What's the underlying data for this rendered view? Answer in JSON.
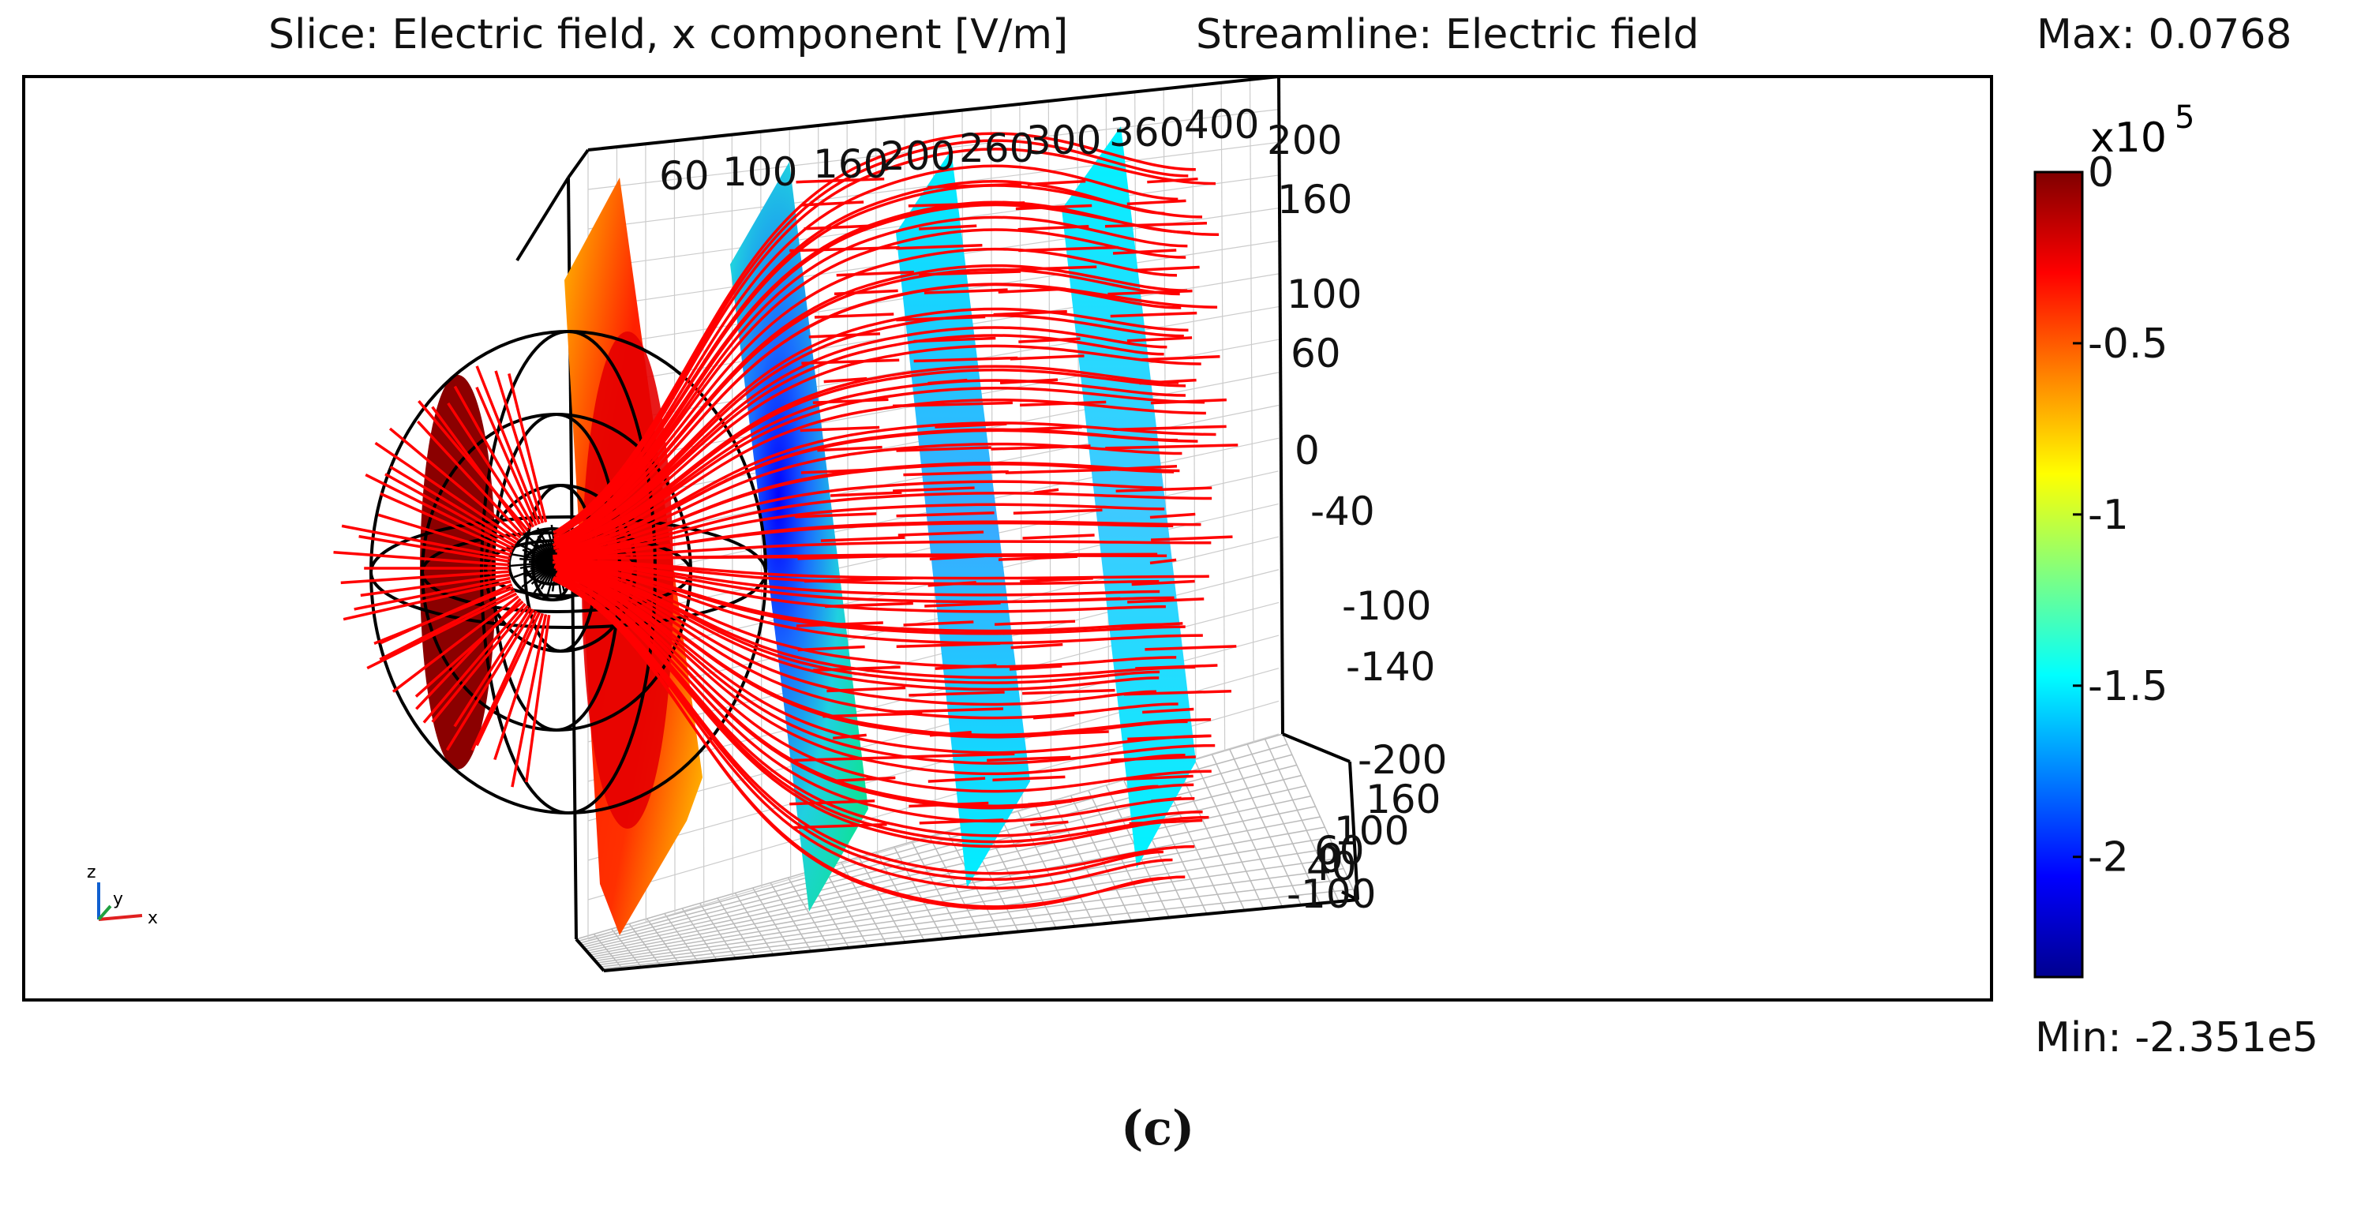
{
  "header": {
    "slice_title": "Slice: Electric field, x component [V/m]",
    "streamline_title": "Streamline: Electric field"
  },
  "colorbar": {
    "max_text": "Max: 0.0768",
    "min_text": "Min: -2.351e5",
    "exponent_text": "x10",
    "exponent_power": "5",
    "colormap": [
      "#7f0000",
      "#ff0000",
      "#ff8000",
      "#ffff00",
      "#80ff80",
      "#00ffff",
      "#0080ff",
      "#0000ff",
      "#00008f"
    ]
  },
  "caption": "(c)",
  "chart_data": {
    "type": "3d-slice-streamline",
    "title": "Slice: Electric field, x component [V/m]   Streamline: Electric field",
    "quantity": "Electric field, x component",
    "unit": "V/m",
    "range": {
      "min": -235100,
      "max": 0.0768
    },
    "colorbar_ticks": [
      {
        "value": 0,
        "label": "0"
      },
      {
        "value": -0.5,
        "label": "-0.5"
      },
      {
        "value": -1,
        "label": "-1"
      },
      {
        "value": -1.5,
        "label": "-1.5"
      },
      {
        "value": -2,
        "label": "-2"
      }
    ],
    "colorbar_scale": 100000,
    "x_ticks": [
      "60",
      "100",
      "160",
      "200",
      "260",
      "300",
      "360",
      "400"
    ],
    "z_ticks": [
      "200",
      "160",
      "100",
      "60",
      "0",
      "-40",
      "-100",
      "-140",
      "-200"
    ],
    "y_ticks": [
      "160",
      "100",
      "60",
      "40",
      "0",
      "-100"
    ],
    "slices": [
      {
        "name": "disc-slice",
        "color": "#8b0000"
      },
      {
        "name": "slice-1",
        "color_range": [
          "#ff0000",
          "#ffdd00"
        ]
      },
      {
        "name": "slice-2",
        "color_range": [
          "#00e0b0",
          "#0000ff"
        ]
      },
      {
        "name": "slice-3",
        "color_range": [
          "#00ffff",
          "#2a9dff"
        ]
      },
      {
        "name": "slice-4",
        "color_range": [
          "#00ffff",
          "#40c8ff"
        ]
      }
    ],
    "axes_indicator": [
      "z",
      "y",
      "x"
    ],
    "streamline_color": "#ff0000"
  }
}
